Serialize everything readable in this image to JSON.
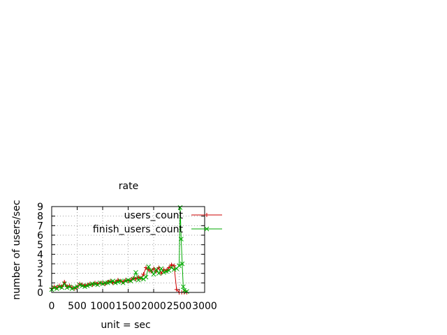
{
  "chart_data": {
    "type": "scatter",
    "title": "rate",
    "xlabel": "unit = sec",
    "ylabel": "number of users/sec",
    "xlim": [
      0,
      3000
    ],
    "ylim": [
      0,
      9
    ],
    "xticks": [
      "0",
      "500",
      "1000",
      "1500",
      "2000",
      "2500",
      "3000"
    ],
    "yticks": [
      "0",
      "1",
      "2",
      "3",
      "4",
      "5",
      "6",
      "7",
      "8",
      "9"
    ],
    "grid": true,
    "legend_position": "top-right",
    "colors": {
      "users_count": "#cc0000",
      "finish_users_count": "#00aa00"
    },
    "series": [
      {
        "name": "users_count",
        "marker": "plus",
        "x": [
          0,
          50,
          100,
          150,
          200,
          250,
          300,
          350,
          400,
          450,
          500,
          550,
          600,
          650,
          700,
          750,
          800,
          850,
          900,
          950,
          1000,
          1050,
          1100,
          1150,
          1200,
          1250,
          1300,
          1350,
          1400,
          1450,
          1500,
          1550,
          1600,
          1650,
          1700,
          1750,
          1800,
          1850,
          1900,
          1950,
          2000,
          2050,
          2100,
          2150,
          2200,
          2250,
          2300,
          2350,
          2400,
          2450,
          2500,
          2550,
          2600,
          2650
        ],
        "y": [
          0.4,
          0.6,
          0.5,
          0.7,
          0.6,
          1.1,
          0.6,
          0.7,
          0.5,
          0.4,
          0.6,
          0.9,
          0.8,
          0.7,
          0.8,
          0.9,
          0.8,
          1.0,
          0.9,
          1.0,
          1.0,
          0.9,
          1.1,
          1.2,
          1.0,
          1.1,
          1.3,
          1.2,
          1.1,
          1.3,
          1.2,
          1.3,
          1.5,
          1.4,
          1.6,
          1.5,
          1.9,
          2.6,
          2.4,
          2.2,
          2.5,
          2.2,
          2.6,
          2.0,
          2.4,
          2.3,
          2.6,
          2.9,
          2.8,
          0.3,
          0.0,
          0.0,
          0.0,
          0.0
        ]
      },
      {
        "name": "finish_users_count",
        "marker": "cross",
        "x": [
          0,
          50,
          100,
          150,
          200,
          250,
          300,
          350,
          400,
          450,
          500,
          550,
          600,
          650,
          700,
          750,
          800,
          850,
          900,
          950,
          1000,
          1050,
          1100,
          1150,
          1200,
          1250,
          1300,
          1350,
          1400,
          1450,
          1500,
          1550,
          1600,
          1650,
          1700,
          1750,
          1800,
          1850,
          1900,
          1950,
          2000,
          2050,
          2100,
          2150,
          2200,
          2250,
          2300,
          2350,
          2400,
          2450,
          2500,
          2520,
          2540,
          2560,
          2580,
          2600,
          2650
        ],
        "y": [
          0.3,
          0.5,
          0.4,
          0.6,
          0.5,
          0.9,
          0.5,
          0.6,
          0.4,
          0.5,
          0.6,
          0.8,
          0.7,
          0.6,
          0.7,
          0.8,
          0.9,
          0.9,
          0.8,
          1.0,
          0.9,
          1.0,
          1.0,
          1.1,
          1.2,
          1.0,
          1.1,
          1.2,
          1.0,
          1.2,
          1.3,
          1.2,
          1.4,
          2.1,
          1.3,
          1.5,
          1.4,
          1.6,
          2.7,
          2.3,
          1.9,
          2.4,
          2.0,
          2.5,
          2.1,
          2.2,
          2.3,
          2.6,
          2.4,
          2.5,
          2.8,
          8.9,
          5.6,
          3.0,
          0.6,
          0.2,
          0.1
        ]
      }
    ]
  }
}
